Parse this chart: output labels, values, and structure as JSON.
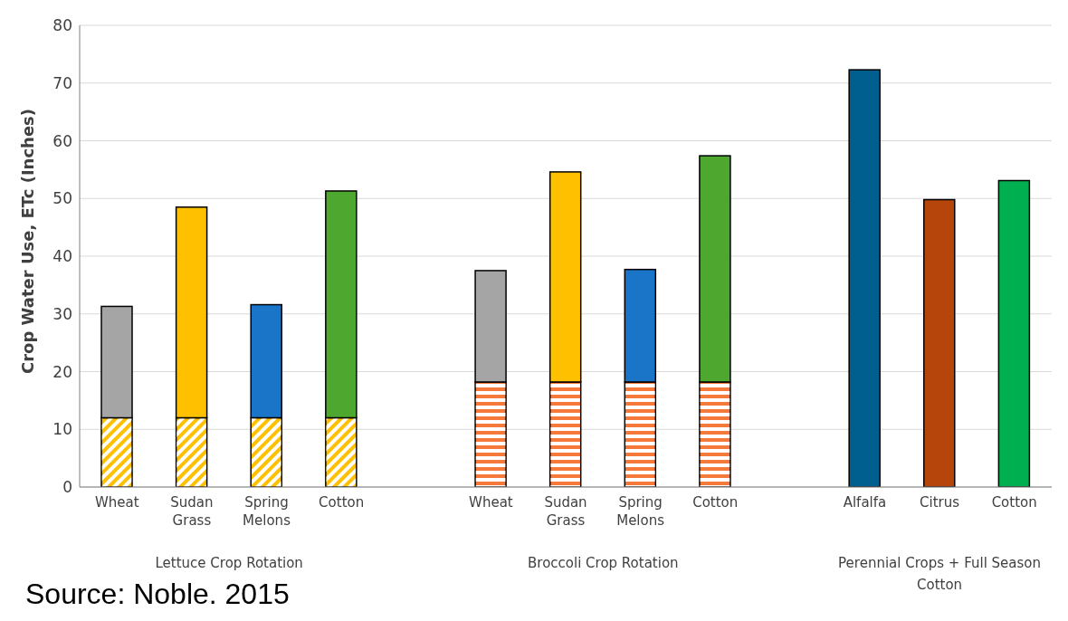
{
  "chart_data": {
    "type": "bar",
    "ylabel": "Crop Water Use, ETc (Inches)",
    "categories": [
      "Wheat",
      "Sudan Grass",
      "Spring Melons",
      "Cotton",
      null,
      "Wheat",
      "Sudan Grass",
      "Spring Melons",
      "Cotton",
      null,
      "Alfalfa",
      "Citrus",
      "Cotton"
    ],
    "series": [
      {
        "colors": [
          "#ffc000",
          "#ffc000",
          "#ffc000",
          "#ffc000",
          null,
          "#f4793b",
          "#f4793b",
          "#f4793b",
          "#f4793b",
          null,
          null,
          null,
          null
        ],
        "values": [
          12,
          12,
          12,
          12,
          null,
          18.2,
          18.2,
          18.2,
          18.2,
          null,
          null,
          null,
          null
        ]
      },
      {
        "colors": [
          "#a5a5a5",
          "#ffc000",
          "#1a75c9",
          "#4ea72e",
          null,
          "#a5a5a5",
          "#ffc000",
          "#1a75c9",
          "#4ea72e",
          null,
          "#005f8e",
          "#b5450b",
          "#00b050"
        ],
        "values": [
          19.3,
          36.5,
          19.6,
          39.3,
          null,
          19.3,
          36.4,
          19.5,
          39.2,
          null,
          72.3,
          49.8,
          53.1
        ]
      }
    ],
    "stacked": true,
    "ylim": [
      0,
      80
    ],
    "yticks": [
      0,
      10,
      20,
      30,
      40,
      50,
      60,
      70,
      80
    ],
    "grid": "y",
    "annotations": [
      "Lettuce Crop Rotation",
      "Broccoli Crop Rotation",
      "Perennial Crops + Full Season Cotton",
      "Source: Noble. 2015"
    ]
  }
}
